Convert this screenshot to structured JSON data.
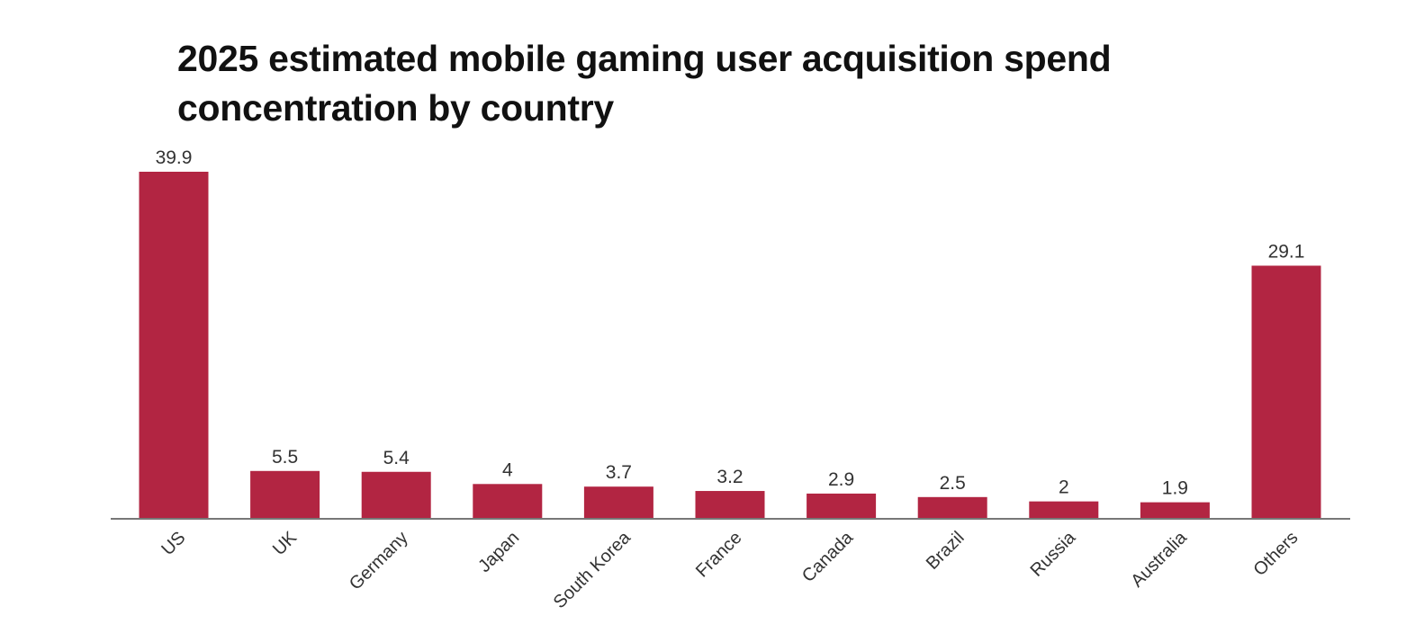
{
  "chart_data": {
    "type": "bar",
    "title": "2025 estimated mobile gaming user acquisition spend concentration by country",
    "xlabel": "",
    "ylabel": "",
    "categories": [
      "US",
      "UK",
      "Germany",
      "Japan",
      "South Korea",
      "France",
      "Canada",
      "Brazil",
      "Russia",
      "Australia",
      "Others"
    ],
    "values": [
      39.9,
      5.5,
      5.4,
      4,
      3.7,
      3.2,
      2.9,
      2.5,
      2,
      1.9,
      29.1
    ],
    "value_labels": [
      "39.9",
      "5.5",
      "5.4",
      "4",
      "3.7",
      "3.2",
      "2.9",
      "2.5",
      "2",
      "1.9",
      "29.1"
    ],
    "ylim": [
      0,
      39.9
    ],
    "grid": false,
    "legend": "none",
    "bar_color": "#b22542",
    "axis_color": "#777777"
  }
}
